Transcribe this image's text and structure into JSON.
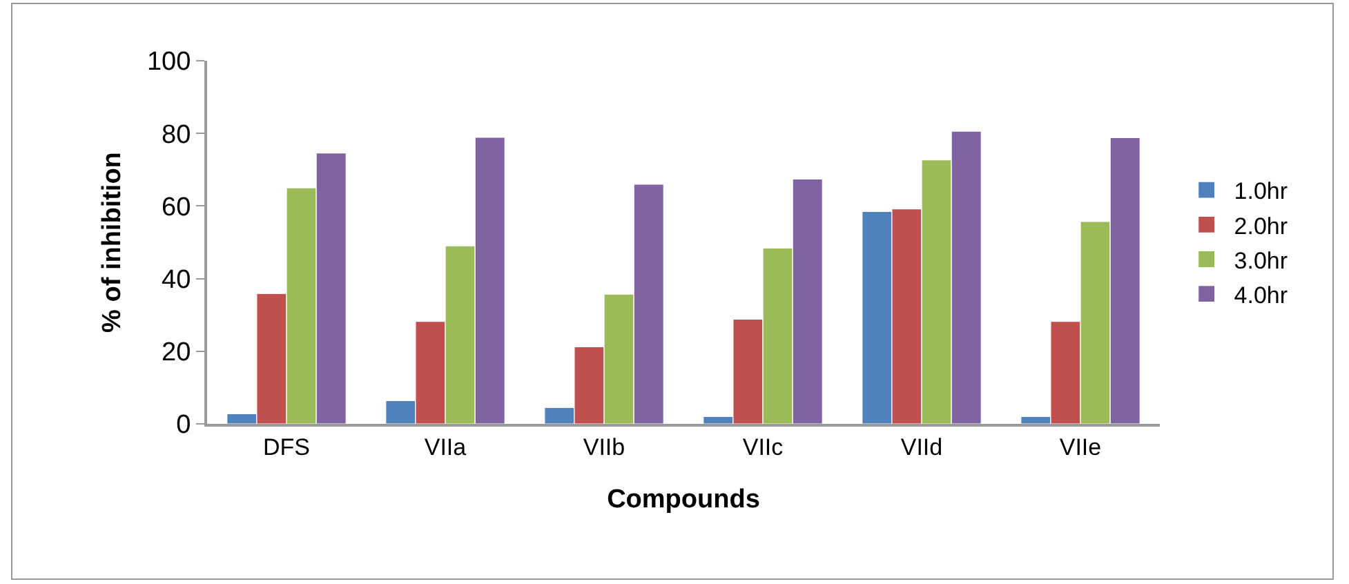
{
  "chart_data": {
    "type": "bar",
    "xlabel": "Compounds",
    "ylabel": "% of inhibition",
    "categories": [
      "DFS",
      "VIIa",
      "VIIb",
      "VIIc",
      "VIId",
      "VIIe"
    ],
    "series": [
      {
        "name": "1.0hr",
        "color": "#4f81bd",
        "values": [
          2.8,
          6.4,
          4.5,
          2,
          58.5,
          2
        ]
      },
      {
        "name": "2.0hr",
        "color": "#c0504d",
        "values": [
          35.9,
          28.2,
          21.2,
          28.8,
          59.2,
          28.2
        ]
      },
      {
        "name": "3.0hr",
        "color": "#9bbb59",
        "values": [
          65,
          49,
          35.7,
          48.4,
          72.7,
          55.7
        ]
      },
      {
        "name": "4.0hr",
        "color": "#8064a2",
        "values": [
          74.6,
          78.9,
          66,
          67.4,
          80.6,
          78.8
        ]
      }
    ],
    "ylim": [
      0,
      100
    ],
    "yticks": [
      0,
      20,
      40,
      60,
      80,
      100
    ],
    "grid": false,
    "legend": "right"
  }
}
